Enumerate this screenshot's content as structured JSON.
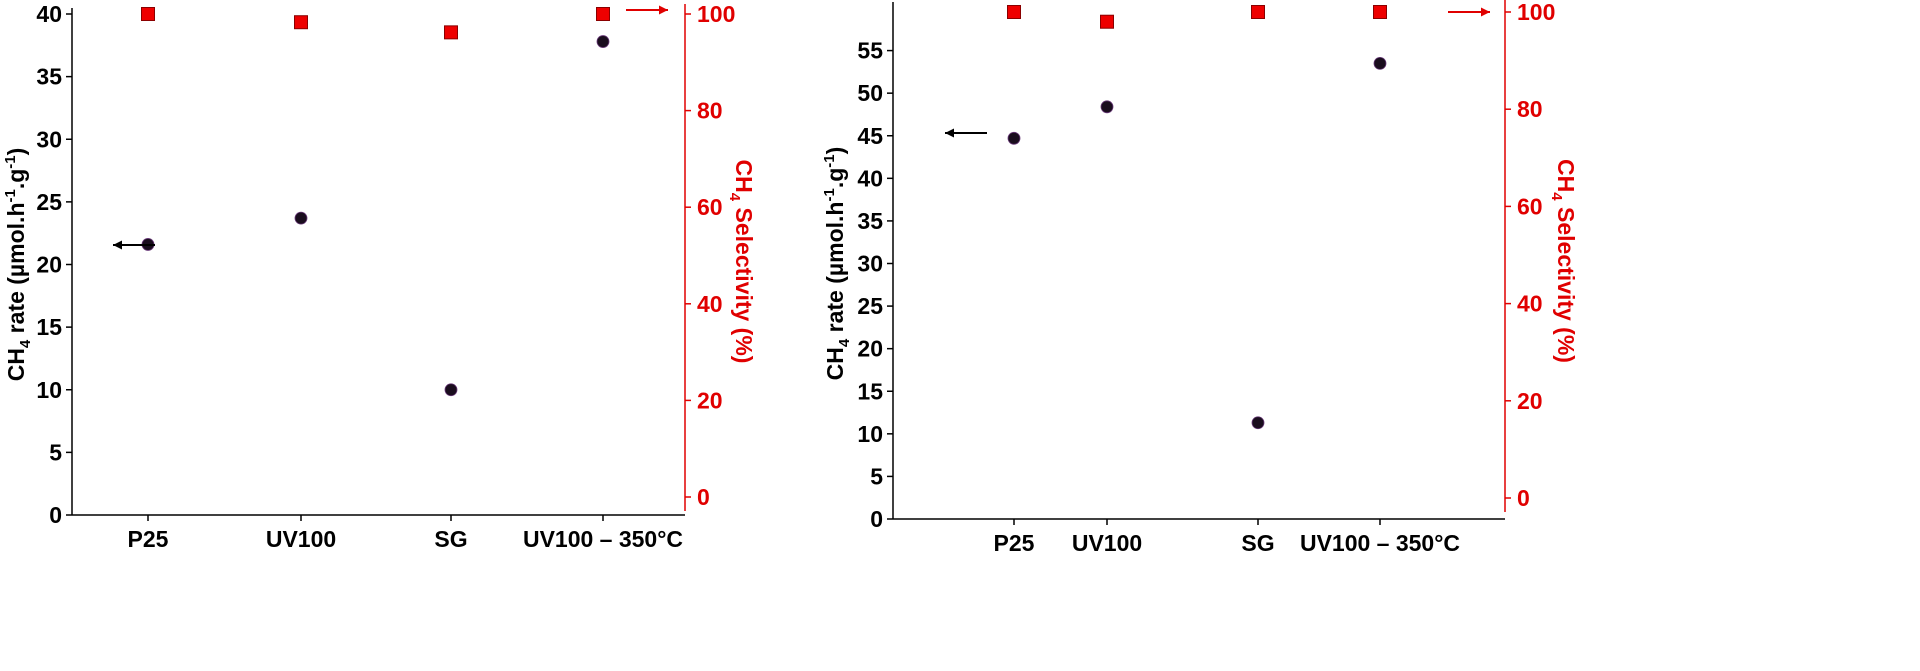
{
  "colors": {
    "left_axis": "#000000",
    "right_axis": "#e00000",
    "marker_rate": "#1a0d1e",
    "marker_selectivity": "#ee0000"
  },
  "chart_data": [
    {
      "type": "scatter",
      "categories": [
        "P25",
        "UV100",
        "SG",
        "UV100 – 350°C"
      ],
      "ylabel": {
        "main": "CH",
        "sub": "4",
        "rest": " rate (µmol.h",
        "sup1": "-1",
        "mid": ".g",
        "sup2": "-1",
        "end": ")"
      },
      "y2label": {
        "main": "CH",
        "sub": "4",
        "rest": " Selectivity (%)"
      },
      "ylim": [
        0,
        40
      ],
      "yticks": [
        0,
        5,
        10,
        15,
        20,
        25,
        30,
        35,
        40
      ],
      "y2lim": [
        0,
        100
      ],
      "y2ticks": [
        0,
        20,
        40,
        60,
        80,
        100
      ],
      "grid": false,
      "series": [
        {
          "axis": "left",
          "marker": "circle",
          "values": [
            21.6,
            23.7,
            10.0,
            37.8
          ]
        },
        {
          "axis": "right",
          "marker": "square",
          "values": [
            100,
            98.3,
            96.2,
            100
          ]
        }
      ]
    },
    {
      "type": "scatter",
      "categories": [
        "P25",
        "UV100",
        "SG",
        "UV100 – 350°C"
      ],
      "ylabel": {
        "main": "CH",
        "sub": "4",
        "rest": " rate (µmol.h",
        "sup1": "-1",
        "mid": ".g",
        "sup2": "-1",
        "end": ")"
      },
      "y2label": {
        "main": "CH",
        "sub": "4",
        "rest": " Selectivity (%)"
      },
      "ylim": [
        0,
        60
      ],
      "yticks": [
        0,
        5,
        10,
        15,
        20,
        25,
        30,
        35,
        40,
        45,
        50,
        55
      ],
      "y2lim": [
        0,
        100
      ],
      "y2ticks": [
        0,
        20,
        40,
        60,
        80,
        100
      ],
      "grid": false,
      "series": [
        {
          "axis": "left",
          "marker": "circle",
          "values": [
            44.7,
            48.4,
            11.3,
            53.5
          ]
        },
        {
          "axis": "right",
          "marker": "square",
          "values": [
            100,
            98,
            100,
            100
          ]
        }
      ]
    }
  ]
}
